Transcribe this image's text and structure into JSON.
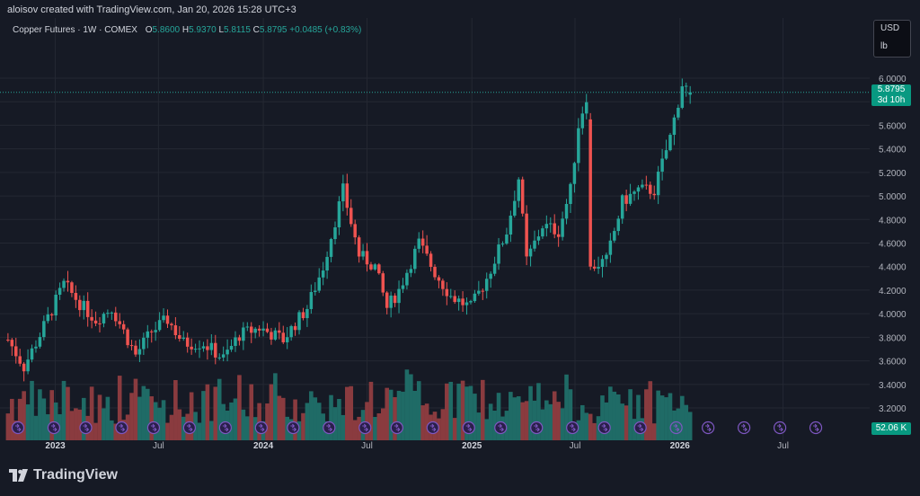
{
  "header": {
    "credit": "aloisov created with TradingView.com, Jan 20, 2026 15:28 UTC+3"
  },
  "legend": {
    "symbol": "Copper Futures · 1W · COMEX",
    "open_label": "O",
    "open": "5.8600",
    "high_label": "H",
    "high": "5.9370",
    "low_label": "L",
    "low": "5.8115",
    "close_label": "C",
    "close": "5.8795",
    "change": "+0.0485 (+0.83%)"
  },
  "units": {
    "currency": "USD",
    "unit": "lb"
  },
  "last_price": {
    "value": "5.8795",
    "countdown": "3d 10h"
  },
  "volume_tag": "52.06 K",
  "footer": {
    "brand": "TradingView"
  },
  "colors": {
    "up": "#26a69a",
    "down": "#ef5350",
    "vol_up": "#1f6b66",
    "vol_down": "#8a3b3f",
    "event": "#7e57c2"
  },
  "chart_data": {
    "type": "candlestick",
    "timeframe": "1W",
    "y_ticks": [
      "6.0000",
      "5.8000",
      "5.6000",
      "5.4000",
      "5.2000",
      "5.0000",
      "4.8000",
      "4.6000",
      "4.4000",
      "4.2000",
      "4.0000",
      "3.8000",
      "3.6000",
      "3.4000",
      "3.2000"
    ],
    "x_ticks": [
      "2023",
      "Jul",
      "2024",
      "Jul",
      "2025",
      "Jul",
      "2026",
      "Jul"
    ],
    "ylim": [
      3.1,
      6.15
    ],
    "anchors": [
      [
        "2022-10-10",
        3.78
      ],
      [
        "2022-11-07",
        3.55
      ],
      [
        "2022-12-05",
        3.82
      ],
      [
        "2023-01-16",
        4.25
      ],
      [
        "2023-02-20",
        4.05
      ],
      [
        "2023-03-13",
        3.95
      ],
      [
        "2023-04-10",
        4.05
      ],
      [
        "2023-05-22",
        3.65
      ],
      [
        "2023-06-19",
        3.85
      ],
      [
        "2023-07-17",
        3.95
      ],
      [
        "2023-08-14",
        3.75
      ],
      [
        "2023-09-18",
        3.75
      ],
      [
        "2023-10-23",
        3.62
      ],
      [
        "2023-11-20",
        3.82
      ],
      [
        "2023-12-25",
        3.88
      ],
      [
        "2024-02-05",
        3.78
      ],
      [
        "2024-03-18",
        4.05
      ],
      [
        "2024-04-15",
        4.4
      ],
      [
        "2024-05-20",
        5.05
      ],
      [
        "2024-06-17",
        4.5
      ],
      [
        "2024-07-15",
        4.4
      ],
      [
        "2024-08-05",
        4.05
      ],
      [
        "2024-08-26",
        4.2
      ],
      [
        "2024-09-30",
        4.6
      ],
      [
        "2024-10-28",
        4.35
      ],
      [
        "2024-11-25",
        4.15
      ],
      [
        "2024-12-30",
        4.05
      ],
      [
        "2025-01-27",
        4.3
      ],
      [
        "2025-03-03",
        4.7
      ],
      [
        "2025-03-24",
        5.15
      ],
      [
        "2025-04-07",
        4.45
      ],
      [
        "2025-05-05",
        4.75
      ],
      [
        "2025-06-02",
        4.7
      ],
      [
        "2025-06-23",
        5.05
      ],
      [
        "2025-07-07",
        5.6
      ],
      [
        "2025-07-21",
        5.85
      ],
      [
        "2025-07-28",
        4.4
      ],
      [
        "2025-08-25",
        4.45
      ],
      [
        "2025-09-22",
        4.95
      ],
      [
        "2025-10-20",
        5.05
      ],
      [
        "2025-11-17",
        5.05
      ],
      [
        "2025-12-15",
        5.5
      ],
      [
        "2026-01-05",
        5.95
      ],
      [
        "2026-01-19",
        5.88
      ]
    ],
    "volume_K_range": [
      20,
      95
    ]
  }
}
